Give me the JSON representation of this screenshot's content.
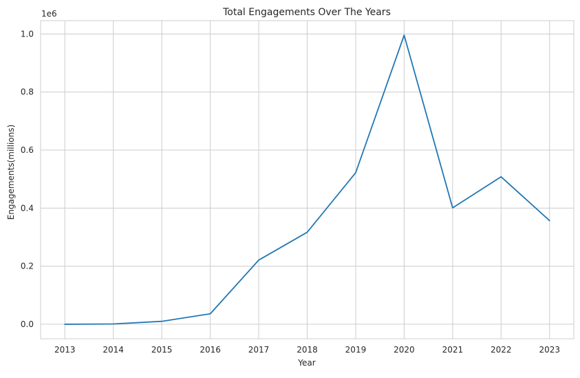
{
  "chart_data": {
    "type": "line",
    "title": "Total Engagements Over The Years",
    "xlabel": "Year",
    "ylabel": "Engagements(millions)",
    "offset_label": "1e6",
    "x": [
      2013,
      2014,
      2015,
      2016,
      2017,
      2018,
      2019,
      2020,
      2021,
      2022,
      2023
    ],
    "series": [
      {
        "values": [
          0.0,
          0.001,
          0.01,
          0.036,
          0.221,
          0.317,
          0.522,
          0.996,
          0.401,
          0.508,
          0.357
        ],
        "color": "#1f77b4"
      }
    ],
    "yticks": [
      0.0,
      0.2,
      0.4,
      0.6,
      0.8,
      1.0
    ],
    "ytick_labels": [
      "0.0",
      "0.2",
      "0.4",
      "0.6",
      "0.8",
      "1.0"
    ],
    "xtick_labels": [
      "2013",
      "2014",
      "2015",
      "2016",
      "2017",
      "2018",
      "2019",
      "2020",
      "2021",
      "2022",
      "2023"
    ],
    "xlim": [
      2012.5,
      2023.5
    ],
    "ylim": [
      -0.05,
      1.046
    ],
    "grid": true,
    "style": {
      "background": "#ffffff",
      "grid_color": "#cccccc",
      "axes_edge_color": "#cccccc"
    }
  }
}
